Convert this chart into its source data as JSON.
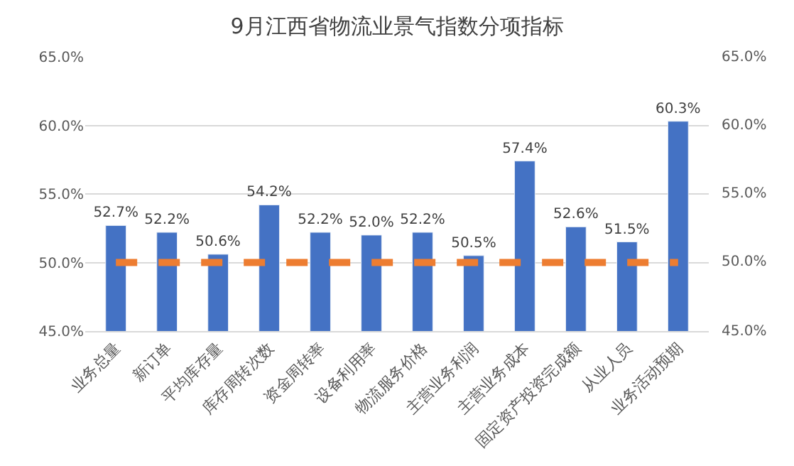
{
  "chart_data": {
    "type": "bar",
    "title": "9月江西省物流业景气指数分项指标",
    "categories": [
      "业务总量",
      "新订单",
      "平均库存量",
      "库存周转次数",
      "资金周转率",
      "设备利用率",
      "物流服务价格",
      "主营业务利润",
      "主营业务成本",
      "固定资产投资完成额",
      "从业人员",
      "业务活动预期"
    ],
    "series": [
      {
        "color": "#4472c4",
        "values": [
          52.7,
          52.2,
          50.6,
          54.2,
          52.2,
          52.0,
          52.2,
          50.5,
          57.4,
          52.6,
          51.5,
          60.3
        ],
        "value_labels": [
          "52.7%",
          "52.2%",
          "50.6%",
          "54.2%",
          "52.2%",
          "52.0%",
          "52.2%",
          "50.5%",
          "57.4%",
          "52.6%",
          "51.5%",
          "60.3%"
        ]
      },
      {
        "type": "line",
        "color": "#ed7d31",
        "line_style": "dashed",
        "marker": "none",
        "values": [
          50,
          50,
          50,
          50,
          50,
          50,
          50,
          50,
          50,
          50,
          50,
          50
        ]
      }
    ],
    "ylim": [
      45,
      65
    ],
    "yticks": [
      {
        "value": 45,
        "label": "45.0%"
      },
      {
        "value": 50,
        "label": "50.0%"
      },
      {
        "value": 55,
        "label": "55.0%"
      },
      {
        "value": 60,
        "label": "60.0%"
      },
      {
        "value": 65,
        "label": "65.0%"
      }
    ],
    "y2lim": [
      45,
      65
    ],
    "y2ticks": [
      {
        "value": 45,
        "label": "45.0%"
      },
      {
        "value": 50,
        "label": "50.0%"
      },
      {
        "value": 55,
        "label": "55.0%"
      },
      {
        "value": 60,
        "label": "60.0%"
      },
      {
        "value": 65,
        "label": "65.0%"
      }
    ],
    "grid": "y",
    "legend": false
  }
}
